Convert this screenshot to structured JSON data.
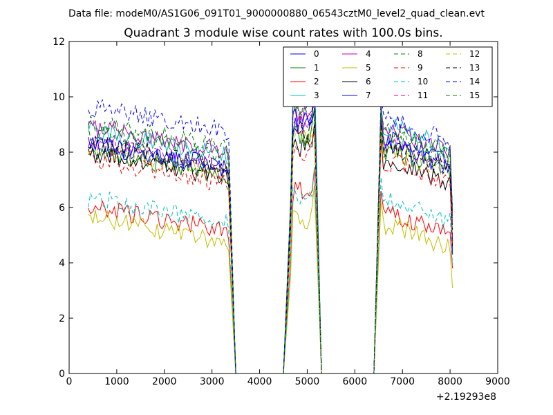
{
  "chart_data": {
    "type": "line",
    "suptitle": "Data file: modeM0/AS1G06_091T01_9000000880_06543cztM0_level2_quad_clean.evt",
    "title": "Quadrant 3 module wise count rates with 100.0s bins.",
    "xlabel": "",
    "ylabel": "",
    "x_offset_label": "+2.19293e8",
    "xlim": [
      0,
      9000
    ],
    "ylim": [
      0,
      12
    ],
    "xticks": [
      0,
      1000,
      2000,
      3000,
      4000,
      5000,
      6000,
      7000,
      8000,
      9000
    ],
    "yticks": [
      0,
      2,
      4,
      6,
      8,
      10,
      12
    ],
    "xtick_labels": [
      "0",
      "1000",
      "2000",
      "3000",
      "4000",
      "5000",
      "6000",
      "7000",
      "8000",
      "9000"
    ],
    "ytick_labels": [
      "0",
      "2",
      "4",
      "6",
      "8",
      "10",
      "12"
    ],
    "legend_position": "top-right",
    "segments": [
      {
        "x_start": 400,
        "x_end": 3350
      },
      {
        "x_start": 4650,
        "x_end": 5150
      },
      {
        "x_start": 6550,
        "x_end": 8050
      }
    ],
    "gap_x": [
      3350,
      3500,
      4500,
      4650,
      5150,
      5300,
      6400,
      6550
    ],
    "series": [
      {
        "name": "0",
        "color": "#0000ff",
        "dashed": false,
        "seg_means": [
          7.8,
          9.2,
          7.9
        ],
        "end": 4.3,
        "peak": 10.3
      },
      {
        "name": "1",
        "color": "#008000",
        "dashed": false,
        "seg_means": [
          7.6,
          8.6,
          7.7
        ],
        "end": 5.0,
        "peak": 9.6
      },
      {
        "name": "2",
        "color": "#ff0000",
        "dashed": false,
        "seg_means": [
          5.6,
          6.6,
          5.4
        ],
        "end": 3.8,
        "peak": 7.4
      },
      {
        "name": "3",
        "color": "#00bfbf",
        "dashed": false,
        "seg_means": [
          8.3,
          10.0,
          8.6
        ],
        "end": 5.5,
        "peak": 11.2
      },
      {
        "name": "4",
        "color": "#bf00bf",
        "dashed": false,
        "seg_means": [
          8.5,
          9.5,
          8.5
        ],
        "end": 5.8,
        "peak": 10.4
      },
      {
        "name": "5",
        "color": "#bfbf00",
        "dashed": false,
        "seg_means": [
          5.2,
          5.6,
          5.0
        ],
        "end": 3.1,
        "peak": 6.8
      },
      {
        "name": "6",
        "color": "#000000",
        "dashed": false,
        "seg_means": [
          7.5,
          8.2,
          7.3
        ],
        "end": 4.6,
        "peak": 9.0
      },
      {
        "name": "7",
        "color": "#0000ff",
        "dashed": false,
        "seg_means": [
          7.9,
          9.0,
          8.1
        ],
        "end": 4.8,
        "peak": 10.1
      },
      {
        "name": "8",
        "color": "#008000",
        "dashed": true,
        "seg_means": [
          8.3,
          9.3,
          8.4
        ],
        "end": 5.6,
        "peak": 10.2
      },
      {
        "name": "9",
        "color": "#ff0000",
        "dashed": true,
        "seg_means": [
          7.3,
          8.0,
          7.3
        ],
        "end": 4.6,
        "peak": 8.7
      },
      {
        "name": "10",
        "color": "#00bfbf",
        "dashed": true,
        "seg_means": [
          5.9,
          6.4,
          5.9
        ],
        "end": 3.9,
        "peak": 7.5
      },
      {
        "name": "11",
        "color": "#bf00bf",
        "dashed": true,
        "seg_means": [
          8.0,
          9.0,
          8.0
        ],
        "end": 5.4,
        "peak": 9.8
      },
      {
        "name": "12",
        "color": "#bfbf00",
        "dashed": true,
        "seg_means": [
          7.7,
          8.5,
          7.7
        ],
        "end": 5.1,
        "peak": 9.2
      },
      {
        "name": "13",
        "color": "#000000",
        "dashed": true,
        "seg_means": [
          7.9,
          8.7,
          7.8
        ],
        "end": 5.2,
        "peak": 9.5
      },
      {
        "name": "14",
        "color": "#0000ff",
        "dashed": true,
        "seg_means": [
          9.2,
          9.9,
          8.8
        ],
        "end": 5.9,
        "peak": 10.6
      },
      {
        "name": "15",
        "color": "#008000",
        "dashed": true,
        "seg_means": [
          8.6,
          9.4,
          8.3
        ],
        "end": 5.8,
        "peak": 10.0
      }
    ]
  }
}
